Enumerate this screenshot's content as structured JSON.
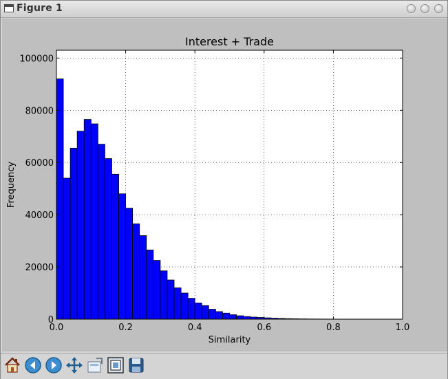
{
  "window": {
    "title": "Figure 1"
  },
  "toolbar": {
    "buttons": [
      {
        "name": "home-icon"
      },
      {
        "name": "back-icon"
      },
      {
        "name": "forward-icon"
      },
      {
        "name": "pan-icon"
      },
      {
        "name": "zoom-icon"
      },
      {
        "name": "subplots-icon"
      },
      {
        "name": "save-icon"
      }
    ]
  },
  "colors": {
    "bar_fill": "#0000ff",
    "canvas_bg": "#bfbfbf",
    "axes_bg": "#ffffff"
  },
  "chart_data": {
    "type": "bar",
    "title": "Interest + Trade",
    "xlabel": "Similarity",
    "ylabel": "Frequency",
    "xlim": [
      0.0,
      1.0
    ],
    "ylim": [
      0,
      103000
    ],
    "grid": true,
    "bin_width": 0.02,
    "x_ticks": [
      0.0,
      0.2,
      0.4,
      0.6,
      0.8,
      1.0
    ],
    "x_tick_labels": [
      "0.0",
      "0.2",
      "0.4",
      "0.6",
      "0.8",
      "1.0"
    ],
    "y_ticks": [
      0,
      20000,
      40000,
      60000,
      80000,
      100000
    ],
    "y_tick_labels": [
      "0",
      "20000",
      "40000",
      "60000",
      "80000",
      "100000"
    ],
    "bin_starts": [
      0.0,
      0.02,
      0.04,
      0.06,
      0.08,
      0.1,
      0.12,
      0.14,
      0.16,
      0.18,
      0.2,
      0.22,
      0.24,
      0.26,
      0.28,
      0.3,
      0.32,
      0.34,
      0.36,
      0.38,
      0.4,
      0.42,
      0.44,
      0.46,
      0.48,
      0.5,
      0.52,
      0.54,
      0.56,
      0.58,
      0.6,
      0.62,
      0.64,
      0.66,
      0.68,
      0.7,
      0.72,
      0.74,
      0.76,
      0.78,
      0.8,
      0.82,
      0.84,
      0.86,
      0.88,
      0.9,
      0.92,
      0.94,
      0.96,
      0.98
    ],
    "values": [
      92000,
      54000,
      65500,
      72000,
      76500,
      74800,
      67000,
      61500,
      55500,
      48000,
      42500,
      36500,
      32000,
      26500,
      22500,
      18500,
      15000,
      12000,
      10000,
      8000,
      6200,
      5200,
      3800,
      2900,
      2300,
      1700,
      1300,
      1000,
      800,
      650,
      500,
      380,
      280,
      200,
      150,
      110,
      80,
      60,
      45,
      35,
      25,
      18,
      12,
      8,
      5,
      3,
      2,
      1,
      1,
      1
    ]
  }
}
